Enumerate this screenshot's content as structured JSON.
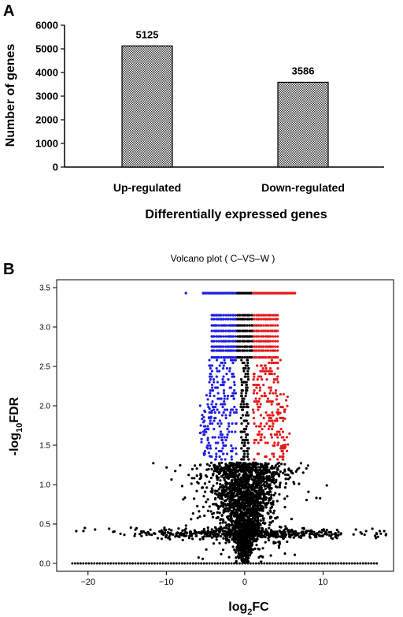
{
  "chart_data": [
    {
      "panel_label": "A",
      "type": "bar",
      "categories": [
        "Up-regulated",
        "Down-regulated"
      ],
      "values": [
        5125,
        3586
      ],
      "data_labels": [
        "5125",
        "3586"
      ],
      "xlabel": "Differentially expressed genes",
      "ylabel": "Number of genes",
      "ylim": [
        0,
        6000
      ],
      "yticks": [
        "0",
        "1000",
        "2000",
        "3000",
        "4000",
        "5000",
        "6000"
      ],
      "bar_fill": "checkered gray",
      "grid": false
    },
    {
      "panel_label": "B",
      "type": "scatter",
      "title": "Volcano plot ( C–VS–W )",
      "xlabel_base": "log",
      "xlabel_sub": "2",
      "xlabel_tail": "FC",
      "ylabel_base": "-log",
      "ylabel_sub": "10",
      "ylabel_tail": "FDR",
      "xlim": [
        -24,
        19
      ],
      "ylim": [
        -0.1,
        3.6
      ],
      "xticks": [
        "−20",
        "−10",
        "0",
        "10"
      ],
      "yticks": [
        "0.0",
        "0.5",
        "1.0",
        "1.5",
        "2.0",
        "2.5",
        "3.0",
        "3.5"
      ],
      "series": [
        {
          "color": "#e31a1c",
          "region": "log2FC > 1, -log10FDR > 1.3"
        },
        {
          "color": "#1f1fe0",
          "region": "log2FC < -1, -log10FDR > 1.3"
        },
        {
          "color": "#000000",
          "region": "not significant"
        }
      ],
      "grid": false
    }
  ]
}
